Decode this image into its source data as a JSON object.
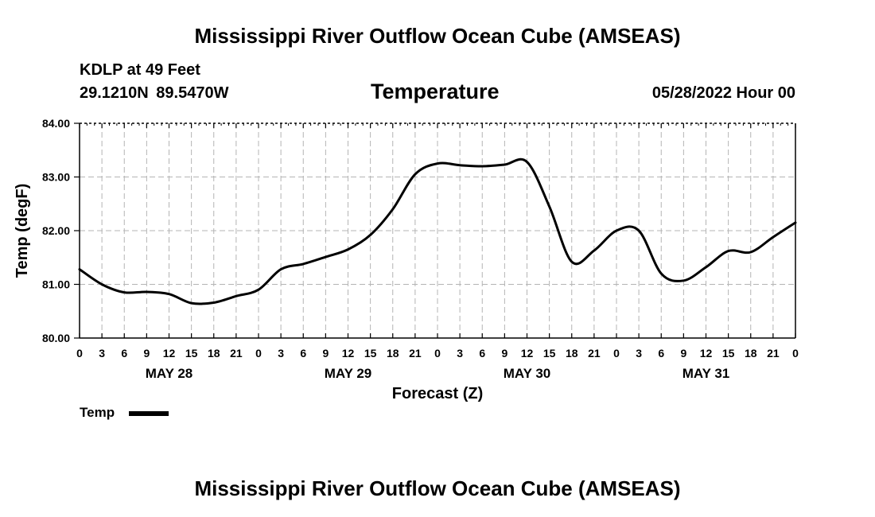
{
  "header": {
    "title": "Mississippi River Outflow Ocean Cube (AMSEAS)",
    "station": "KDLP at 49 Feet",
    "coords": "29.1210N  89.5470W",
    "variable": "Temperature",
    "date": "05/28/2022 Hour 00"
  },
  "footer": {
    "title": "Mississippi River Outflow Ocean Cube (AMSEAS)"
  },
  "legend": {
    "label": "Temp",
    "color": "#000000"
  },
  "chart_data": {
    "type": "line",
    "title": "Temperature",
    "xlabel": "Forecast (Z)",
    "ylabel": "Temp (degF)",
    "xlim": [
      0,
      96
    ],
    "ylim": [
      80.0,
      84.0
    ],
    "grid": true,
    "x_tick_step_hours": 3,
    "x_tick_labels": [
      "0",
      "3",
      "6",
      "9",
      "12",
      "15",
      "18",
      "21",
      "0",
      "3",
      "6",
      "9",
      "12",
      "15",
      "18",
      "21",
      "0",
      "3",
      "6",
      "9",
      "12",
      "15",
      "18",
      "21",
      "0",
      "3",
      "6",
      "9",
      "12",
      "15",
      "18",
      "21",
      "0"
    ],
    "y_ticks": [
      80.0,
      81.0,
      82.0,
      83.0,
      84.0
    ],
    "y_tick_labels": [
      "80.00",
      "81.00",
      "82.00",
      "83.00",
      "84.00"
    ],
    "day_labels": [
      {
        "label": "MAY 28",
        "hour": 12
      },
      {
        "label": "MAY 29",
        "hour": 36
      },
      {
        "label": "MAY 30",
        "hour": 60
      },
      {
        "label": "MAY 31",
        "hour": 84
      }
    ],
    "series": [
      {
        "name": "Temp",
        "color": "#000000",
        "x": [
          0,
          3,
          6,
          9,
          12,
          15,
          18,
          21,
          24,
          27,
          30,
          33,
          36,
          39,
          42,
          45,
          48,
          51,
          54,
          57,
          60,
          63,
          66,
          69,
          72,
          75,
          78,
          81,
          84,
          87,
          90,
          93,
          96
        ],
        "values": [
          81.28,
          81.0,
          80.85,
          80.86,
          80.82,
          80.65,
          80.66,
          80.78,
          80.9,
          81.28,
          81.38,
          81.51,
          81.65,
          81.92,
          82.4,
          83.05,
          83.25,
          83.22,
          83.2,
          83.23,
          83.28,
          82.45,
          81.42,
          81.63,
          82.0,
          82.0,
          81.2,
          81.07,
          81.32,
          81.62,
          81.6,
          81.88,
          82.15
        ]
      }
    ]
  }
}
